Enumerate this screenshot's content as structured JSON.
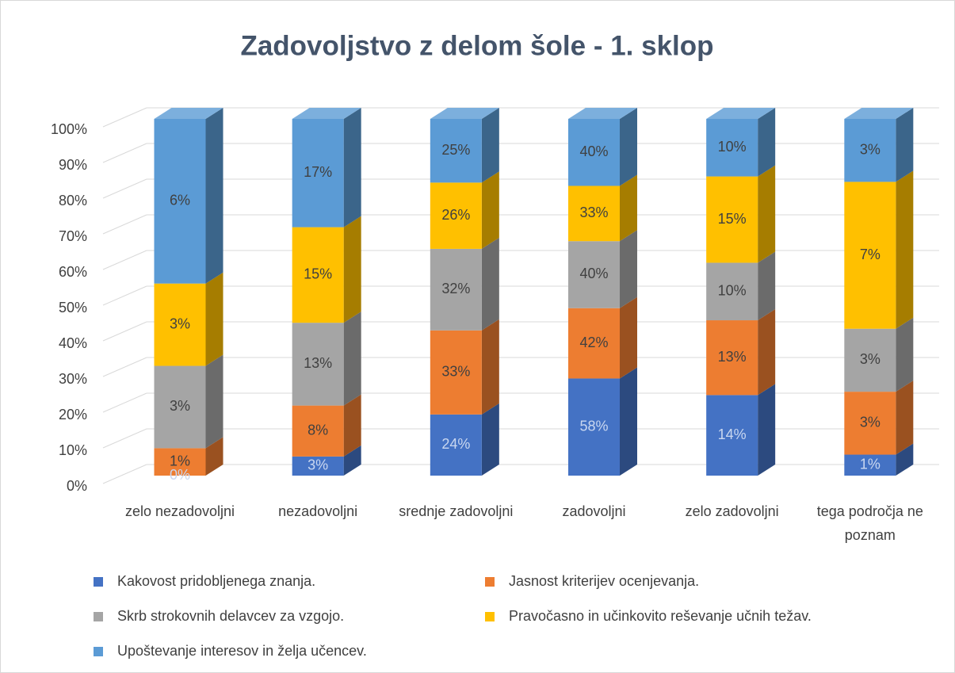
{
  "chart_data": {
    "type": "bar",
    "stacked": "percent",
    "title": "Zadovoljstvo z delom šole - 1. sklop",
    "categories": [
      "zelo nezadovoljni",
      "nezadovoljni",
      "srednje zadovoljni",
      "zadovoljni",
      "zelo zadovoljni",
      "tega področja ne poznam"
    ],
    "series": [
      {
        "name": "Kakovost pridobljenega znanja.",
        "color": "#4472c4",
        "values": [
          0,
          3,
          24,
          58,
          14,
          1
        ],
        "value_labels": [
          "0%",
          "3%",
          "24%",
          "58%",
          "14%",
          "1%"
        ]
      },
      {
        "name": "Jasnost kriterijev ocenjevanja.",
        "color": "#ed7d31",
        "values": [
          1,
          8,
          33,
          42,
          13,
          3
        ],
        "value_labels": [
          "1%",
          "8%",
          "33%",
          "42%",
          "13%",
          "3%"
        ]
      },
      {
        "name": "Skrb strokovnih delavcev za vzgojo.",
        "color": "#a5a5a5",
        "values": [
          3,
          13,
          32,
          40,
          10,
          3
        ],
        "value_labels": [
          "3%",
          "13%",
          "32%",
          "40%",
          "10%",
          "3%"
        ]
      },
      {
        "name": "Pravočasno in učinkovito reševanje učnih težav.",
        "color": "#ffc000",
        "values": [
          3,
          15,
          26,
          33,
          15,
          7
        ],
        "value_labels": [
          "3%",
          "15%",
          "26%",
          "33%",
          "15%",
          "7%"
        ]
      },
      {
        "name": "Upoštevanje interesov in želja učencev.",
        "color": "#5b9bd5",
        "values": [
          6,
          17,
          25,
          40,
          10,
          3
        ],
        "value_labels": [
          "6%",
          "17%",
          "25%",
          "40%",
          "10%",
          "3%"
        ]
      }
    ],
    "ylim": [
      0,
      100
    ],
    "yticks": [
      {
        "value": 0,
        "label": "0%"
      },
      {
        "value": 10,
        "label": "10%"
      },
      {
        "value": 20,
        "label": "20%"
      },
      {
        "value": 30,
        "label": "30%"
      },
      {
        "value": 40,
        "label": "40%"
      },
      {
        "value": 50,
        "label": "50%"
      },
      {
        "value": 60,
        "label": "60%"
      },
      {
        "value": 70,
        "label": "70%"
      },
      {
        "value": 80,
        "label": "80%"
      },
      {
        "value": 90,
        "label": "90%"
      },
      {
        "value": 100,
        "label": "100%"
      }
    ],
    "grid": true,
    "legend": "bottom"
  }
}
